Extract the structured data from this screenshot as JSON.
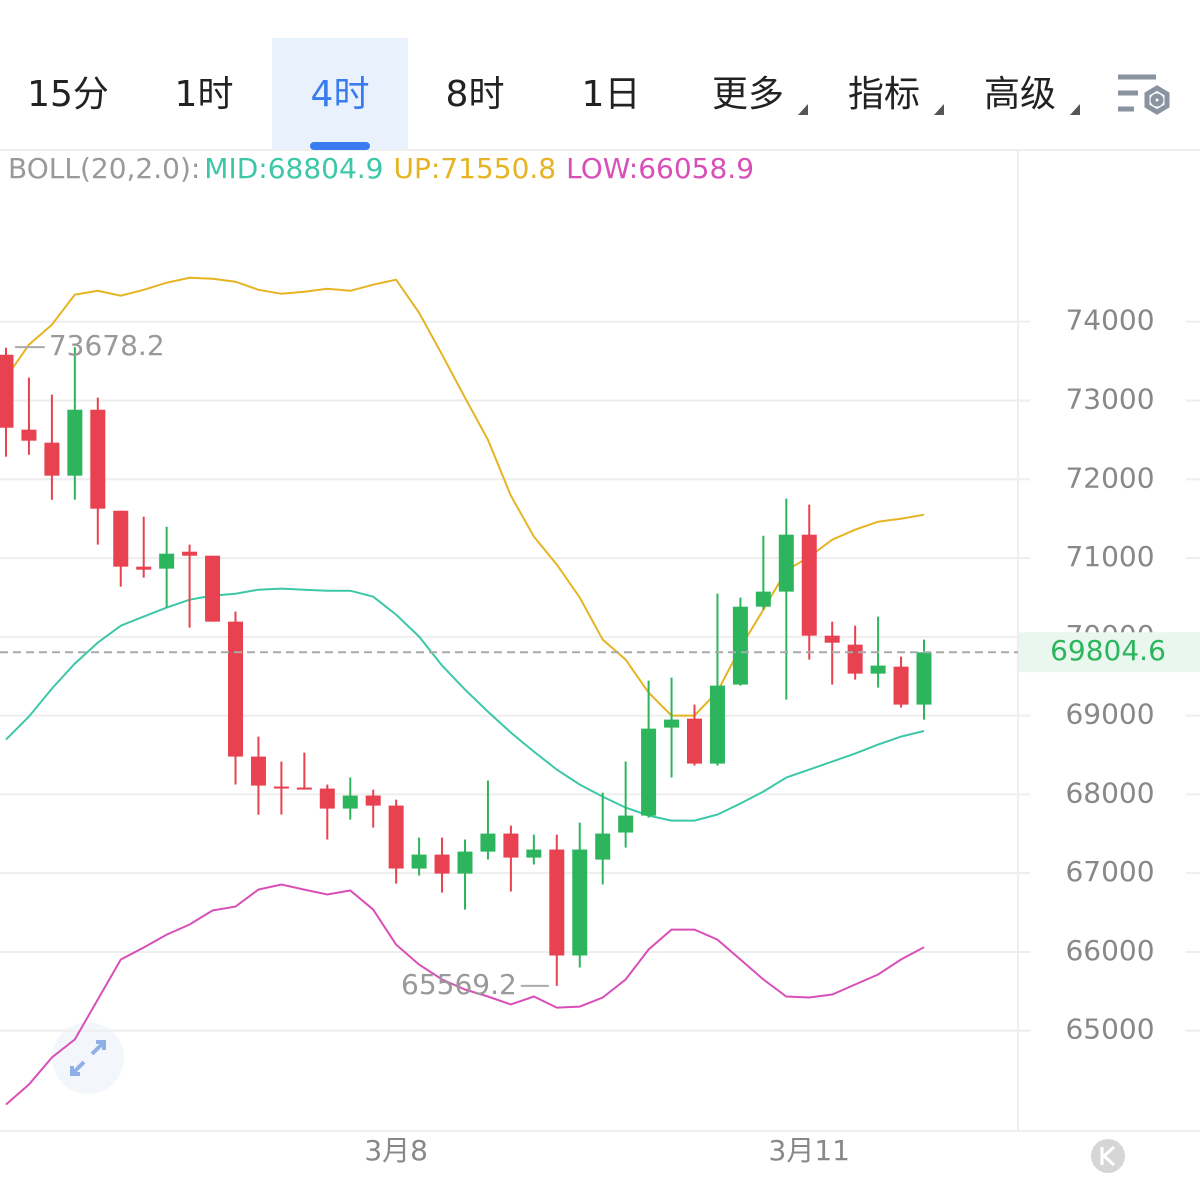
{
  "tabs": [
    "15分",
    "1时",
    "4时",
    "8时",
    "1日",
    "更多",
    "指标",
    "高级"
  ],
  "selected_tab": 2,
  "chart_data": {
    "type": "candlestick",
    "indicator": "BOLL(20,2.0):",
    "up_color": "#2db55d",
    "down_color": "#e8414f",
    "categories": [
      null,
      null,
      null,
      null,
      null,
      null,
      null,
      null,
      null,
      null,
      null,
      null,
      null,
      null,
      null,
      null,
      null,
      "3月8",
      null,
      null,
      null,
      null,
      null,
      null,
      null,
      null,
      null,
      null,
      null,
      null,
      null,
      null,
      null,
      null,
      null,
      "3月11",
      null,
      null,
      null,
      null,
      null
    ],
    "open": [
      73581,
      72630,
      72465,
      72046,
      72883,
      71601,
      70891,
      70866,
      71081,
      71030,
      70193,
      68480,
      68100,
      68087,
      68074,
      67820,
      67985,
      67858,
      67059,
      67236,
      66995,
      67274,
      67503,
      67198,
      67300,
      65955,
      67173,
      67516,
      67731,
      68848,
      68962,
      68391,
      69394,
      70383,
      70574,
      71297,
      70015,
      69901,
      69533,
      69622,
      69140
    ],
    "high": [
      73670,
      73290,
      73074,
      73678.2,
      73036,
      71601,
      71525,
      71398,
      71170,
      71030,
      70320,
      68734,
      68417,
      68531,
      68125,
      68214,
      68061,
      67934,
      67452,
      67452,
      67427,
      68176,
      67604,
      67490,
      67490,
      67642,
      68023,
      68417,
      69444,
      69482,
      69140,
      70548,
      70498,
      71284,
      71754,
      71678,
      70193,
      70142,
      70257,
      69749,
      69965
    ],
    "low": [
      72287,
      72312,
      71741,
      71741,
      71170,
      70637,
      70751,
      70371,
      70117,
      70193,
      68125,
      67744,
      67744,
      68061,
      67427,
      67680,
      67579,
      66868,
      66970,
      66754,
      66538,
      67173,
      66767,
      67110,
      65569.2,
      65802,
      66856,
      67325,
      67706,
      68214,
      68366,
      68366,
      69381,
      70345,
      69203,
      69711,
      69394,
      69457,
      69356,
      69102,
      68949
    ],
    "close": [
      72655,
      72490,
      72046,
      72883,
      71627,
      70891,
      70853,
      71056,
      71030,
      70193,
      68480,
      68112,
      68074,
      68061,
      67820,
      67985,
      67858,
      67059,
      67236,
      66995,
      67274,
      67503,
      67198,
      67300,
      65955,
      67300,
      67503,
      67731,
      68835,
      68950,
      68391,
      69381,
      70383,
      70574,
      71297,
      70015,
      69926,
      69533,
      69635,
      69140,
      69804.6
    ],
    "series": [
      {
        "name": "MID:68804.9",
        "color": "#3cc7a8",
        "values": [
          68696,
          68988,
          69343,
          69660,
          69927,
          70142,
          70257,
          70371,
          70472,
          70523,
          70548,
          70599,
          70612,
          70599,
          70586,
          70586,
          70510,
          70282,
          70003,
          69635,
          69330,
          69051,
          68785,
          68543,
          68315,
          68125,
          67972,
          67833,
          67731,
          67668,
          67668,
          67744,
          67884,
          68036,
          68214,
          68315,
          68417,
          68518,
          68632,
          68734,
          68804.9
        ]
      },
      {
        "name": "UP:71550.8",
        "color": "#e6b422",
        "values": [
          73290,
          73708,
          73962,
          74343,
          74393,
          74330,
          74406,
          74495,
          74558,
          74546,
          74508,
          74406,
          74355,
          74380,
          74419,
          74393,
          74470,
          74533,
          74114,
          73581,
          73036,
          72503,
          71792,
          71272,
          70917,
          70498,
          69965,
          69711,
          69292,
          69000,
          69000,
          69305,
          69863,
          70345,
          70840,
          71018,
          71233,
          71360,
          71462,
          71500,
          71550.8
        ]
      },
      {
        "name": "LOW:66058.9",
        "color": "#d94fb8",
        "values": [
          64064,
          64318,
          64660,
          64889,
          65396,
          65904,
          66056,
          66221,
          66348,
          66526,
          66576,
          66792,
          66856,
          66792,
          66729,
          66780,
          66538,
          66094,
          65840,
          65650,
          65523,
          65434,
          65333,
          65434,
          65294,
          65307,
          65422,
          65650,
          66031,
          66284,
          66284,
          66157,
          65904,
          65650,
          65434,
          65422,
          65460,
          65587,
          65714,
          65904,
          66058.9
        ]
      }
    ],
    "ylim": [
      63740,
      76180
    ],
    "yticks": [
      65000,
      66000,
      67000,
      68000,
      69000,
      70000,
      71000,
      72000,
      73000,
      74000
    ],
    "grid": true
  }
}
